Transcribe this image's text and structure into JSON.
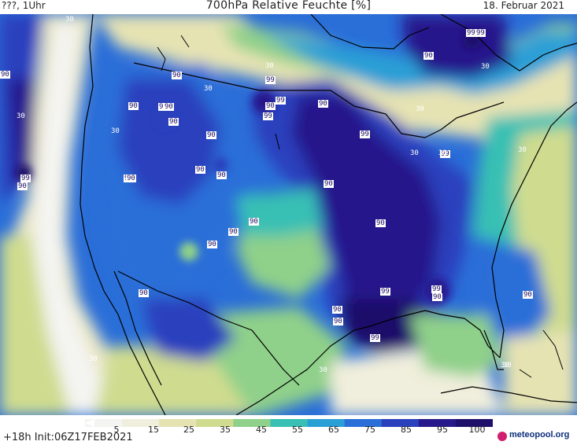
{
  "header": {
    "left": "???, 1Uhr",
    "title": "700hPa Relative Feuchte [%]",
    "right": "18. Februar 2021"
  },
  "footer": {
    "init": "+18h Init:06Z17FEB2021",
    "logo": "meteopool.org"
  },
  "legend": {
    "ticks": [
      "5",
      "15",
      "25",
      "35",
      "45",
      "55",
      "65",
      "75",
      "85",
      "95",
      "100"
    ],
    "colors": [
      "#f4f4f2",
      "#f0eedc",
      "#e6e3b3",
      "#cfdc8f",
      "#8fd08a",
      "#39c0b4",
      "#2a9fd6",
      "#2a6ed8",
      "#2a40bd",
      "#27198c",
      "#1d0f6a"
    ]
  },
  "map_labels": [
    {
      "text": "30",
      "tone": "light"
    },
    {
      "text": "90",
      "tone": "dark"
    },
    {
      "text": "30",
      "tone": "light"
    },
    {
      "text": "99",
      "tone": "dark"
    },
    {
      "text": "90",
      "tone": "dark"
    },
    {
      "text": "30",
      "tone": "light"
    },
    {
      "text": "99",
      "tone": "dark"
    },
    {
      "text": "99",
      "tone": "dark"
    },
    {
      "text": "90",
      "tone": "dark"
    },
    {
      "text": "90",
      "tone": "dark"
    },
    {
      "text": "90",
      "tone": "dark"
    },
    {
      "text": "30",
      "tone": "light"
    },
    {
      "text": "90",
      "tone": "dark"
    },
    {
      "text": "99",
      "tone": "dark"
    },
    {
      "text": "90",
      "tone": "dark"
    },
    {
      "text": "99",
      "tone": "dark"
    },
    {
      "text": "90",
      "tone": "dark"
    },
    {
      "text": "30",
      "tone": "light"
    },
    {
      "text": "90",
      "tone": "dark"
    },
    {
      "text": "90",
      "tone": "dark"
    },
    {
      "text": "99",
      "tone": "dark"
    },
    {
      "text": "30",
      "tone": "light"
    },
    {
      "text": "90",
      "tone": "dark"
    },
    {
      "text": "30",
      "tone": "light"
    },
    {
      "text": "30",
      "tone": "light"
    },
    {
      "text": "99",
      "tone": "dark"
    },
    {
      "text": "90",
      "tone": "dark"
    },
    {
      "text": "90",
      "tone": "dark"
    },
    {
      "text": "90",
      "tone": "dark"
    },
    {
      "text": "90",
      "tone": "dark"
    },
    {
      "text": "90",
      "tone": "dark"
    },
    {
      "text": "90",
      "tone": "dark"
    },
    {
      "text": "90",
      "tone": "dark"
    },
    {
      "text": "90",
      "tone": "dark"
    },
    {
      "text": "90",
      "tone": "dark"
    },
    {
      "text": "99",
      "tone": "dark"
    },
    {
      "text": "99",
      "tone": "dark"
    },
    {
      "text": "90",
      "tone": "dark"
    },
    {
      "text": "90",
      "tone": "dark"
    },
    {
      "text": "90",
      "tone": "dark"
    },
    {
      "text": "99",
      "tone": "dark"
    },
    {
      "text": "30",
      "tone": "light"
    },
    {
      "text": "30",
      "tone": "light"
    },
    {
      "text": "30",
      "tone": "light"
    },
    {
      "text": "99",
      "tone": "dark"
    },
    {
      "text": "30",
      "tone": "light"
    },
    {
      "text": "30",
      "tone": "light"
    },
    {
      "text": "90",
      "tone": "dark"
    },
    {
      "text": "90",
      "tone": "dark"
    },
    {
      "text": "30",
      "tone": "light"
    },
    {
      "text": "90",
      "tone": "dark"
    }
  ]
}
